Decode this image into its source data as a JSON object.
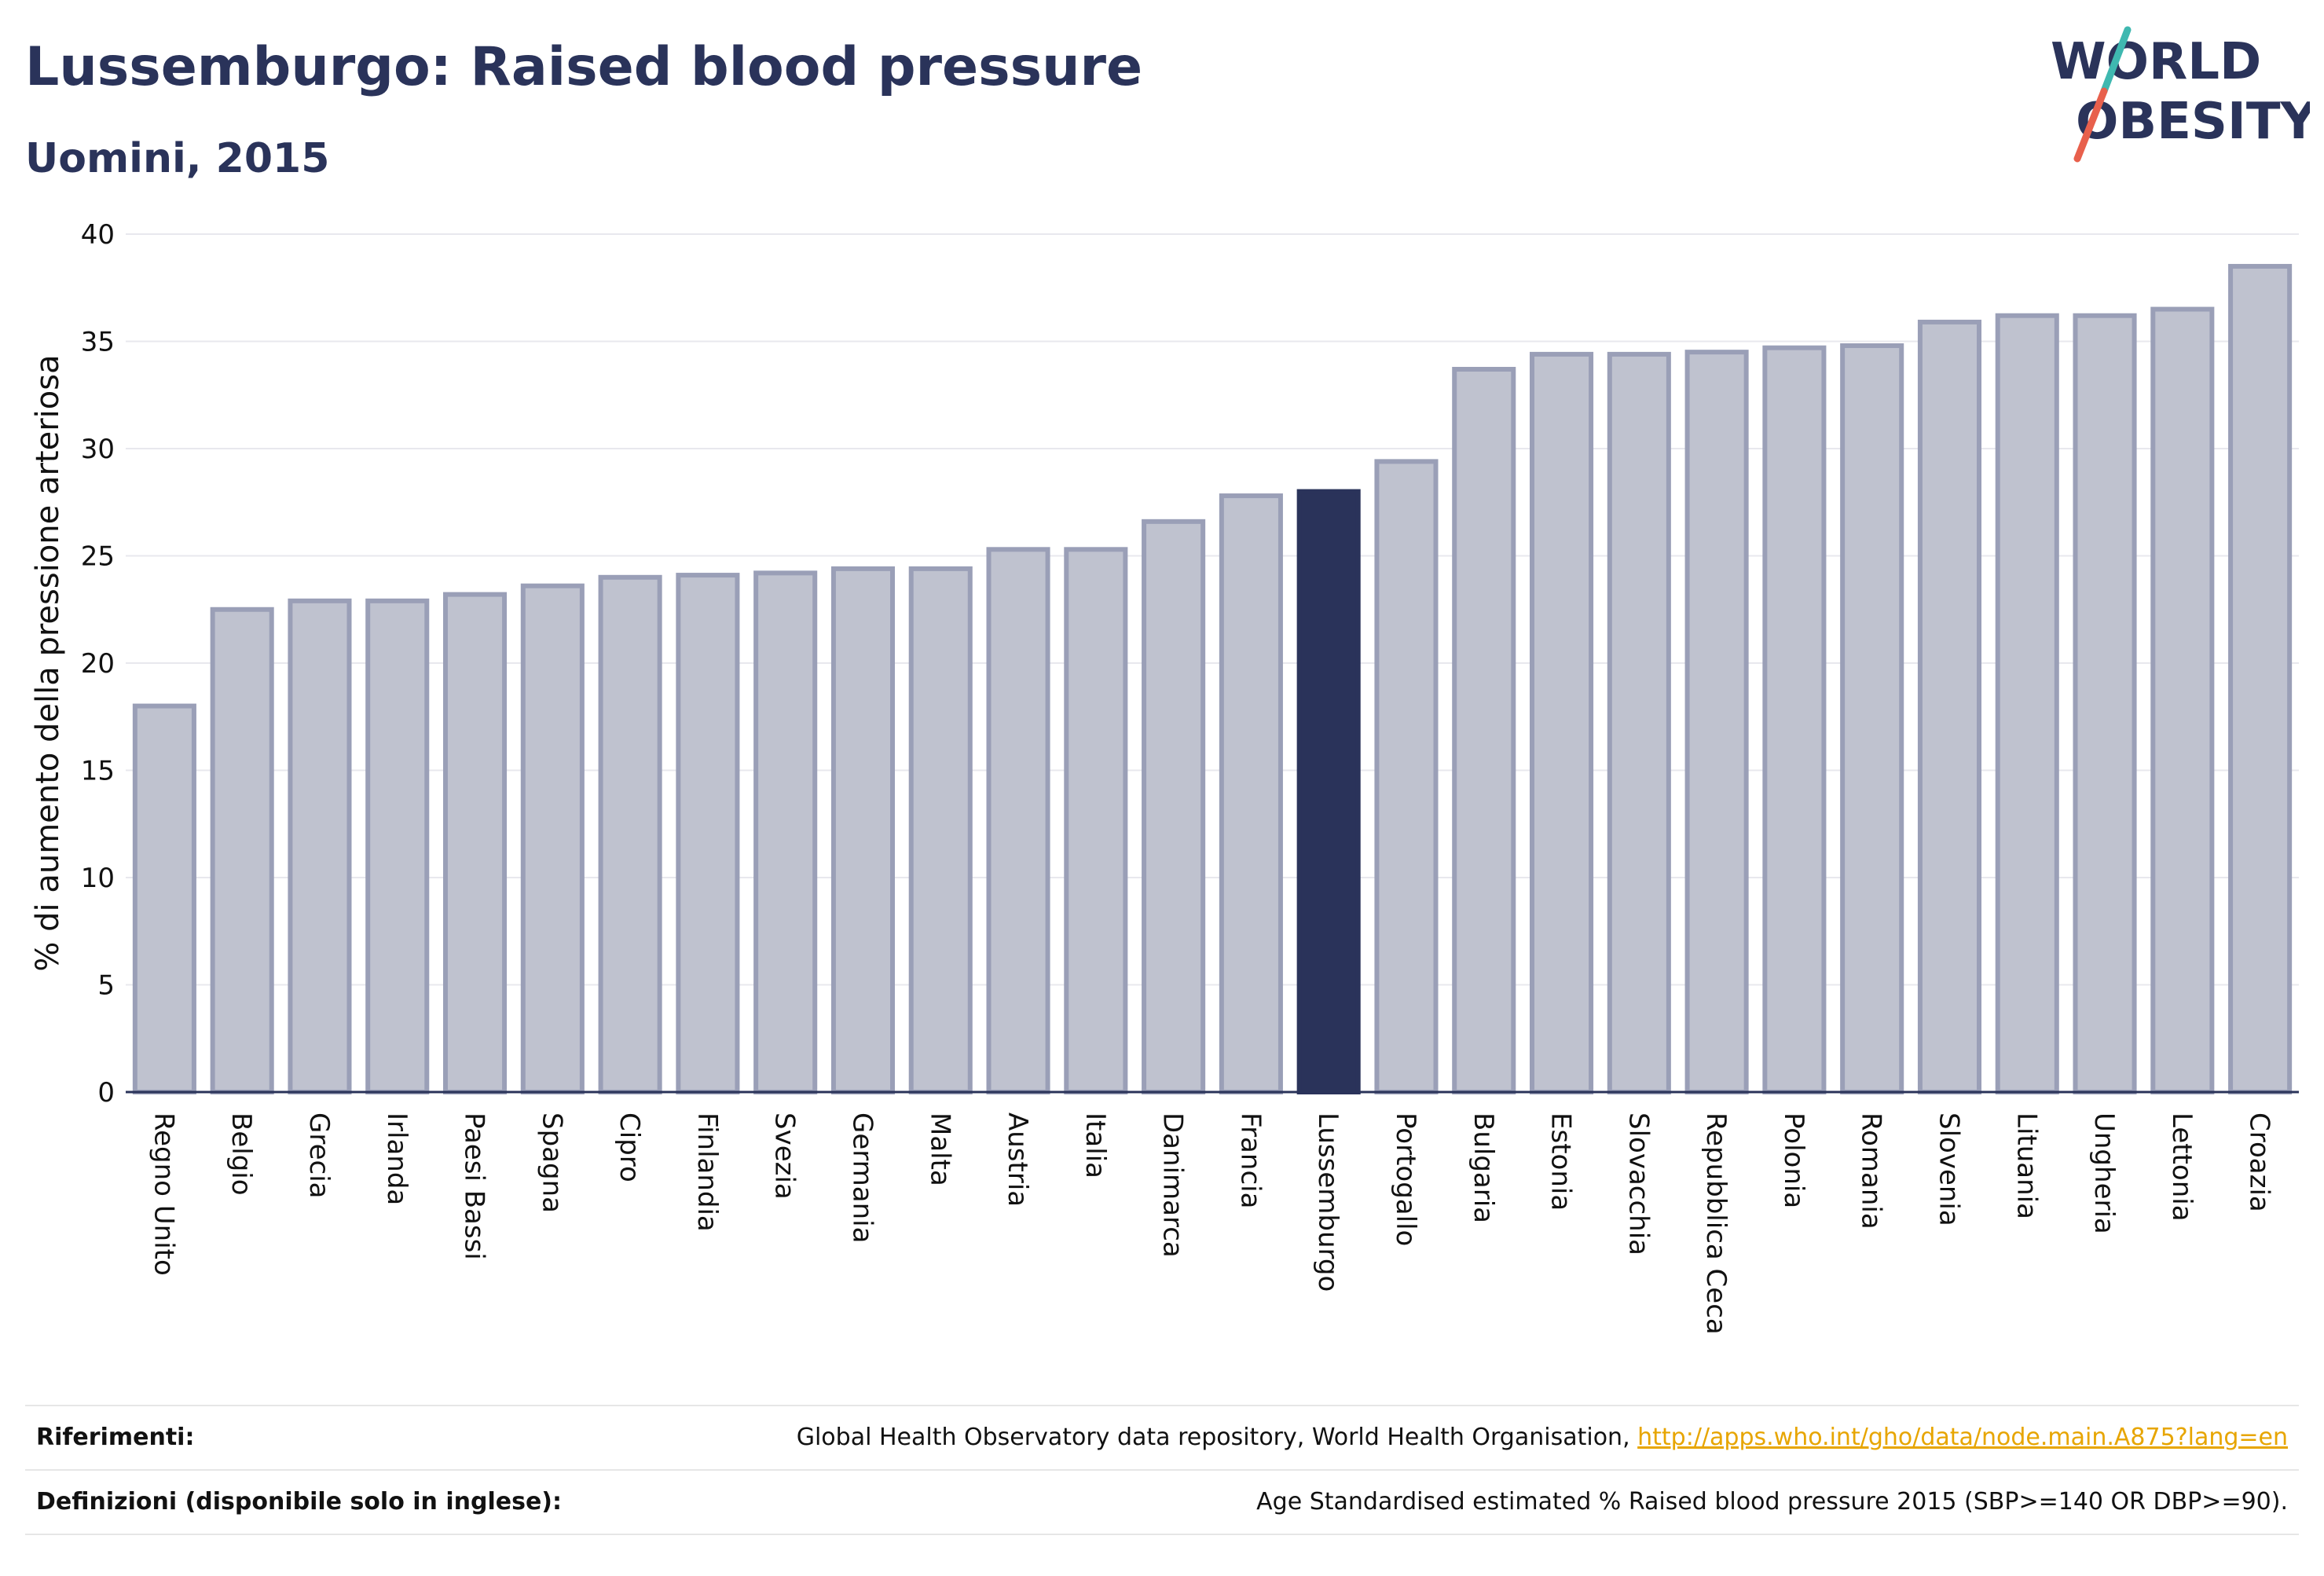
{
  "header": {
    "title": "Lussemburgo: Raised blood pressure",
    "subtitle": "Uomini, 2015"
  },
  "logo": {
    "line1": "WORLD",
    "line2": "OBESITY",
    "accent_teal": "#3fb8b0",
    "accent_red": "#e8604c",
    "color": "#2a335a"
  },
  "chart_data": {
    "type": "bar",
    "title": "Lussemburgo: Raised blood pressure",
    "subtitle": "Uomini, 2015",
    "ylabel": "% di aumento della pressione arteriosa",
    "xlabel": "",
    "ylim": [
      0,
      40
    ],
    "yticks": [
      0,
      5,
      10,
      15,
      20,
      25,
      30,
      35,
      40
    ],
    "grid": true,
    "highlight": "Lussemburgo",
    "colors": {
      "bar_fill": "#bfc2cf",
      "bar_stroke": "#9a9fb7",
      "highlight": "#2a335a",
      "grid": "#e8e8ee",
      "axis": "#2a335a"
    },
    "categories": [
      "Regno Unito",
      "Belgio",
      "Grecia",
      "Irlanda",
      "Paesi Bassi",
      "Spagna",
      "Cipro",
      "Finlandia",
      "Svezia",
      "Germania",
      "Malta",
      "Austria",
      "Italia",
      "Danimarca",
      "Francia",
      "Lussemburgo",
      "Portogallo",
      "Bulgaria",
      "Estonia",
      "Slovacchia",
      "Repubblica Ceca",
      "Polonia",
      "Romania",
      "Slovenia",
      "Lituania",
      "Ungheria",
      "Lettonia",
      "Croazia"
    ],
    "values": [
      18.0,
      22.5,
      22.9,
      22.9,
      23.2,
      23.6,
      24.0,
      24.1,
      24.2,
      24.4,
      24.4,
      25.3,
      25.3,
      26.6,
      27.8,
      28.0,
      29.4,
      33.7,
      34.4,
      34.4,
      34.5,
      34.7,
      34.8,
      35.9,
      36.2,
      36.2,
      36.5,
      38.5
    ]
  },
  "footer": {
    "references_label": "Riferimenti:",
    "references_text": "Global Health Observatory data repository, World Health Organisation, ",
    "references_link": "http://apps.who.int/gho/data/node.main.A875?lang=en",
    "definitions_label": "Definizioni (disponibile solo in inglese):",
    "definitions_text": "Age Standardised estimated % Raised blood pressure 2015 (SBP>=140 OR DBP>=90)."
  }
}
